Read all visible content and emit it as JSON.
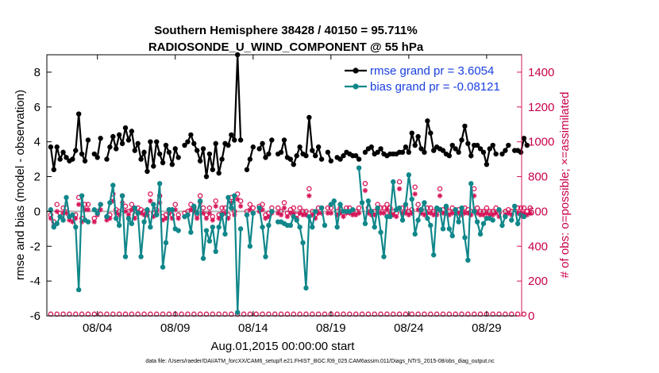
{
  "chart_data": {
    "type": "line",
    "title": "Southern Hemisphere 38428 / 40150 = 95.711%",
    "subtitle": "RADIOSONDE_U_WIND_COMPONENT @ 55 hPa",
    "xlabel": "Aug.01,2015 00:00:00 start",
    "ylabel": "rmse and bias (model - observation)",
    "y2label": "# of obs: o=possible; ×=assimilated",
    "footnote": "data file: /Users/raeder/DAI/ATM_forcXX/CAM6_setup/f.e21.FHIST_BGC.f09_025.CAM6assim.011/Diags_NTrS_2015-08/obs_diag_output.nc",
    "x_range_days": [
      0.75,
      31.25
    ],
    "ylim": [
      -6,
      9
    ],
    "y2lim": [
      0,
      1500
    ],
    "x_ticks": [
      {
        "day": 4,
        "label": "08/04"
      },
      {
        "day": 9,
        "label": "08/09"
      },
      {
        "day": 14,
        "label": "08/14"
      },
      {
        "day": 19,
        "label": "08/19"
      },
      {
        "day": 24,
        "label": "08/24"
      },
      {
        "day": 29,
        "label": "08/29"
      }
    ],
    "y_ticks": [
      -6,
      -4,
      -2,
      0,
      2,
      4,
      6,
      8
    ],
    "y_tick_labels": [
      "-6",
      "-4",
      "-2",
      "0",
      "2",
      "4",
      "6",
      "8"
    ],
    "y2_ticks": [
      0,
      200,
      400,
      600,
      800,
      1000,
      1200,
      1400
    ],
    "y2_tick_labels": [
      "0",
      "200",
      "400",
      "600",
      "800",
      "1000",
      "1200",
      "1400"
    ],
    "colors": {
      "rmse": "#000000",
      "bias": "#10878a",
      "obs": "#d6165a",
      "zero": "#b3b3b3",
      "legend_text": "#1a40e0"
    },
    "series": [
      {
        "name": "rmse grand pr = 3.6054",
        "key": "rmse",
        "values": [
          3.7,
          2.4,
          3.7,
          3.0,
          3.4,
          3.1,
          2.9,
          3.0,
          3.5,
          5.6,
          3.3,
          2.9,
          4.1,
          null,
          3.3,
          3.1,
          4.2,
          null,
          3.0,
          3.7,
          4.3,
          3.6,
          4.4,
          3.9,
          4.8,
          4.1,
          4.6,
          3.5,
          3.9,
          3.0,
          3.4,
          2.3,
          4.0,
          2.6,
          4.0,
          3.3,
          2.8,
          3.8,
          3.4,
          2.7,
          3.6,
          3.1,
          null,
          3.8,
          4.0,
          4.4,
          3.9,
          3.5,
          2.9,
          3.6,
          2.0,
          3.3,
          2.4,
          3.9,
          2.2,
          3.0,
          3.9,
          3.8,
          4.4,
          4.1,
          9.0,
          4.1,
          null,
          2.4,
          3.0,
          3.7,
          null,
          3.6,
          3.9,
          3.1,
          3.3,
          4.1,
          null,
          3.3,
          3.4,
          4.1,
          3.1,
          3.0,
          2.7,
          3.2,
          3.7,
          3.3,
          3.2,
          5.4,
          3.5,
          3.2,
          3.7,
          3.0,
          null,
          3.4,
          2.9,
          null,
          3.1,
          3.0,
          3.2,
          3.4,
          3.3,
          3.2,
          3.2,
          3.0,
          null,
          3.4,
          3.6,
          3.7,
          3.3,
          3.4,
          3.6,
          3.3,
          3.2,
          3.3,
          3.3,
          3.3,
          3.4,
          3.4,
          3.7,
          3.4,
          4.5,
          3.8,
          4.3,
          3.6,
          3.4,
          5.2,
          4.5,
          3.5,
          3.7,
          3.6,
          3.5,
          3.3,
          3.2,
          3.8,
          3.6,
          3.4,
          4.1,
          4.9,
          3.9,
          3.2,
          3.8,
          3.8,
          3.6,
          3.4,
          2.7,
          3.6,
          3.8,
          3.3,
          null,
          3.3,
          3.5,
          3.8,
          null,
          3.5,
          3.5,
          3.4,
          4.2,
          3.8
        ]
      },
      {
        "name": "bias grand pr = -0.08121",
        "key": "bias",
        "values": [
          0.1,
          -0.9,
          -0.7,
          -0.3,
          -0.5,
          0.8,
          -0.3,
          -0.2,
          -0.9,
          -4.5,
          0.9,
          -0.5,
          -0.6,
          null,
          0.1,
          -0.1,
          0.4,
          null,
          -0.3,
          0.5,
          1.5,
          -0.4,
          -0.8,
          0.9,
          -2.6,
          -0.4,
          -0.7,
          0.2,
          -0.1,
          -2.6,
          -0.6,
          0.1,
          -0.9,
          0.4,
          -0.2,
          1.6,
          -3.2,
          -1.8,
          0.1,
          0.1,
          -1.0,
          -1.1,
          null,
          -0.3,
          -0.2,
          -1.2,
          0.3,
          -0.1,
          0.6,
          -2.7,
          -1.1,
          -1.7,
          -0.9,
          -2.3,
          -0.9,
          -0.2,
          -1.3,
          0.8,
          0.2,
          0.9,
          -5.8,
          -1.0,
          null,
          -0.2,
          -2.0,
          -0.1,
          null,
          0.2,
          -0.9,
          -2.6,
          -0.8,
          0.0,
          null,
          -0.6,
          -0.6,
          -0.7,
          -0.8,
          -0.8,
          -0.3,
          -0.5,
          -0.9,
          -1.8,
          -4.4,
          -0.3,
          -0.9,
          0.0,
          null,
          0.2,
          -0.8,
          null,
          0.4,
          0.6,
          -0.9,
          0.4,
          0.0,
          0.0,
          0.0,
          0.1,
          null,
          2.5,
          0.5,
          -0.7,
          0.6,
          0.0,
          -0.9,
          0.2,
          -1.2,
          -2.6,
          -0.3,
          -0.3,
          1.7,
          0.1,
          0.2,
          -0.5,
          0.4,
          2.1,
          0.7,
          -1.3,
          -0.5,
          0.1,
          0.5,
          -0.4,
          -0.8,
          -2.5,
          0.2,
          0.1,
          -1.0,
          0.3,
          -1.0,
          -1.4,
          0.1,
          -0.6,
          0.2,
          -1.5,
          -2.8,
          1.6,
          0.0,
          -0.6,
          -1.3,
          -0.7,
          -0.4,
          -0.4,
          -0.5,
          null,
          0.1,
          -0.8,
          -0.3,
          null,
          -0.5,
          0.3,
          -0.7,
          -0.2,
          -0.3
        ]
      },
      {
        "name": "obs possible",
        "key": "possible",
        "values": [
          580,
          540,
          640,
          590,
          620,
          620,
          570,
          560,
          580,
          680,
          560,
          640,
          640,
          null,
          560,
          600,
          640,
          null,
          570,
          580,
          700,
          610,
          600,
          690,
          630,
          600,
          640,
          580,
          620,
          610,
          600,
          600,
          700,
          590,
          610,
          690,
          570,
          580,
          610,
          580,
          640,
          580,
          null,
          590,
          600,
          640,
          620,
          580,
          690,
          620,
          580,
          620,
          570,
          660,
          580,
          620,
          620,
          580,
          680,
          600,
          700,
          660,
          null,
          600,
          640,
          620,
          null,
          630,
          640,
          580,
          590,
          620,
          null,
          620,
          600,
          650,
          590,
          610,
          620,
          580,
          620,
          600,
          600,
          730,
          600,
          580,
          620,
          620,
          null,
          620,
          620,
          null,
          600,
          620,
          590,
          620,
          620,
          600,
          600,
          620,
          null,
          760,
          620,
          600,
          600,
          640,
          620,
          620,
          640,
          620,
          600,
          590,
          770,
          620,
          620,
          600,
          610,
          740,
          640,
          610,
          600,
          620,
          620,
          600,
          600,
          730,
          610,
          620,
          600,
          620,
          610,
          610,
          600,
          620,
          610,
          600,
          730,
          620,
          600,
          600,
          620,
          600,
          600,
          620,
          590,
          null,
          600,
          610,
          600,
          null,
          620,
          620,
          620,
          600,
          620
        ]
      },
      {
        "name": "obs assimilated",
        "key": "assimilated",
        "values": [
          560,
          520,
          600,
          570,
          590,
          590,
          550,
          540,
          560,
          640,
          540,
          610,
          610,
          null,
          540,
          580,
          610,
          null,
          550,
          560,
          660,
          590,
          580,
          650,
          600,
          580,
          610,
          560,
          590,
          590,
          580,
          580,
          660,
          570,
          590,
          650,
          550,
          560,
          590,
          560,
          610,
          560,
          null,
          570,
          580,
          610,
          600,
          560,
          650,
          590,
          560,
          590,
          550,
          630,
          560,
          590,
          590,
          560,
          650,
          580,
          670,
          630,
          null,
          580,
          610,
          590,
          null,
          600,
          610,
          560,
          570,
          590,
          null,
          590,
          580,
          620,
          570,
          590,
          590,
          560,
          590,
          580,
          580,
          690,
          580,
          560,
          590,
          590,
          null,
          590,
          590,
          null,
          580,
          590,
          570,
          590,
          590,
          580,
          580,
          590,
          null,
          720,
          590,
          580,
          580,
          610,
          590,
          590,
          610,
          590,
          580,
          570,
          730,
          590,
          590,
          580,
          590,
          700,
          610,
          590,
          580,
          590,
          590,
          580,
          580,
          690,
          590,
          590,
          580,
          590,
          590,
          590,
          580,
          590,
          590,
          580,
          690,
          590,
          580,
          580,
          590,
          580,
          580,
          590,
          570,
          null,
          580,
          590,
          580,
          null,
          590,
          590,
          590,
          580,
          590
        ]
      }
    ]
  }
}
